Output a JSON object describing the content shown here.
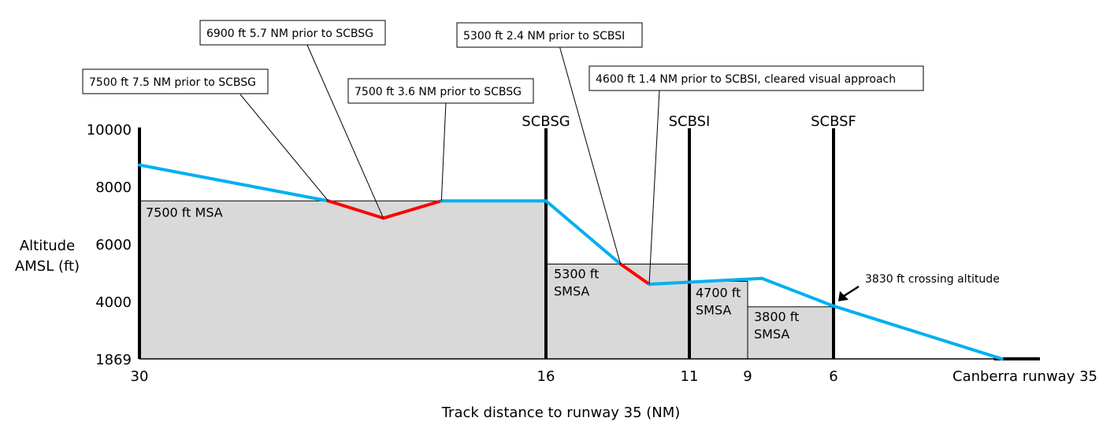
{
  "chart_data": {
    "type": "line",
    "title": "",
    "xlabel": "Track distance to runway 35 (NM)",
    "ylabel": [
      "Altitude",
      "AMSL (ft)"
    ],
    "x_direction": "decreasing",
    "xlim": [
      30,
      0
    ],
    "ylim": [
      1869,
      10000
    ],
    "x_ticks": [
      {
        "value": 30,
        "label": "30"
      },
      {
        "value": 16,
        "label": "16"
      },
      {
        "value": 11,
        "label": "11"
      },
      {
        "value": 9,
        "label": "9"
      },
      {
        "value": 6,
        "label": "6"
      },
      {
        "value": 0,
        "label": "Canberra runway 35"
      }
    ],
    "y_ticks": [
      {
        "value": 1869,
        "label": "1869"
      },
      {
        "value": 4000,
        "label": "4000"
      },
      {
        "value": 6000,
        "label": "6000"
      },
      {
        "value": 8000,
        "label": "8000"
      },
      {
        "value": 10000,
        "label": "10000"
      }
    ],
    "safe_altitude_zones": [
      {
        "from": 30,
        "to": 16,
        "altitude": 7500,
        "label_lines": [
          "7500 ft MSA"
        ]
      },
      {
        "from": 16,
        "to": 11,
        "altitude": 5300,
        "label_lines": [
          "5300 ft",
          "SMSA"
        ]
      },
      {
        "from": 11,
        "to": 9,
        "altitude": 4700,
        "label_lines": [
          "4700 ft",
          "SMSA"
        ]
      },
      {
        "from": 9,
        "to": 6,
        "altitude": 3800,
        "label_lines": [
          "3800 ft",
          "SMSA"
        ]
      }
    ],
    "waypoints": [
      {
        "name": "SCBSG",
        "distance": 16
      },
      {
        "name": "SCBSI",
        "distance": 11
      },
      {
        "name": "SCBSF",
        "distance": 6
      }
    ],
    "flight_path": [
      {
        "distance": 30,
        "altitude": 8750,
        "status": "above"
      },
      {
        "distance": 23.5,
        "altitude": 7500,
        "status": "below"
      },
      {
        "distance": 21.6,
        "altitude": 6900,
        "status": "below"
      },
      {
        "distance": 19.6,
        "altitude": 7500,
        "status": "above"
      },
      {
        "distance": 16,
        "altitude": 7500,
        "status": "above"
      },
      {
        "distance": 13.4,
        "altitude": 5300,
        "status": "below"
      },
      {
        "distance": 12.4,
        "altitude": 4600,
        "status": "above"
      },
      {
        "distance": 8.5,
        "altitude": 4800,
        "status": "above"
      },
      {
        "distance": 6,
        "altitude": 3830,
        "status": "above"
      },
      {
        "distance": 0.7,
        "altitude": 1869,
        "status": "above"
      }
    ],
    "series": [
      {
        "name": "flight path above safe altitude",
        "color": "#00b0f0"
      },
      {
        "name": "flight path below safe altitude",
        "color": "#ff0000"
      }
    ],
    "annotations": [
      {
        "text": "7500 ft 7.5 NM prior to SCBSG",
        "point_distance": 23.5,
        "point_altitude": 7500
      },
      {
        "text": "6900 ft 5.7 NM prior to SCBSG",
        "point_distance": 21.6,
        "point_altitude": 6900
      },
      {
        "text": "7500 ft 3.6 NM prior to SCBSG",
        "point_distance": 19.6,
        "point_altitude": 7500
      },
      {
        "text": "5300 ft 2.4 NM prior to SCBSI",
        "point_distance": 13.4,
        "point_altitude": 5300
      },
      {
        "text": "4600 ft 1.4 NM prior to SCBSI, cleared visual approach",
        "point_distance": 12.4,
        "point_altitude": 4600
      }
    ],
    "crossing_annotation": {
      "text": "3830 ft crossing altitude",
      "point_distance": 6,
      "point_altitude": 3830
    }
  },
  "colors": {
    "fill": "#d9d9d9",
    "above": "#00b0f0",
    "below": "#ff0000",
    "axis": "#000000"
  }
}
